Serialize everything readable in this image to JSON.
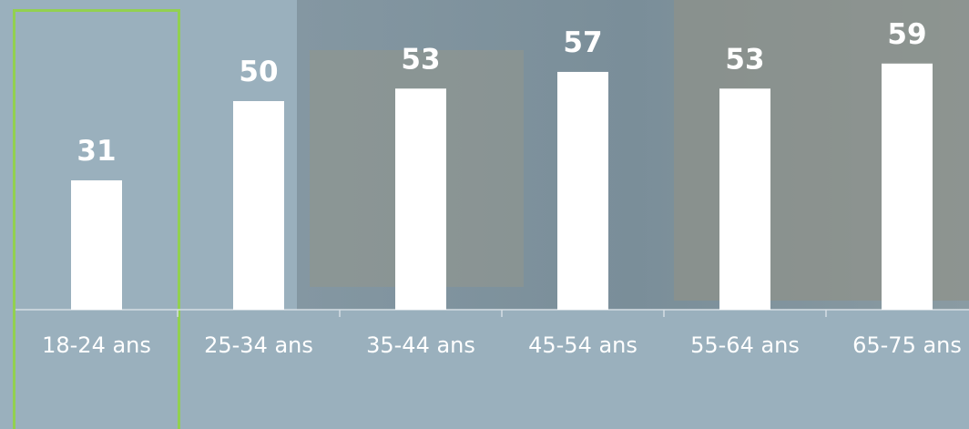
{
  "chart_data": {
    "type": "bar",
    "categories": [
      "18-24 ans",
      "25-34 ans",
      "35-44 ans",
      "45-54 ans",
      "55-64 ans",
      "65-75 ans"
    ],
    "values": [
      31,
      50,
      53,
      57,
      53,
      59
    ],
    "color": "#ffffff"
  }
}
